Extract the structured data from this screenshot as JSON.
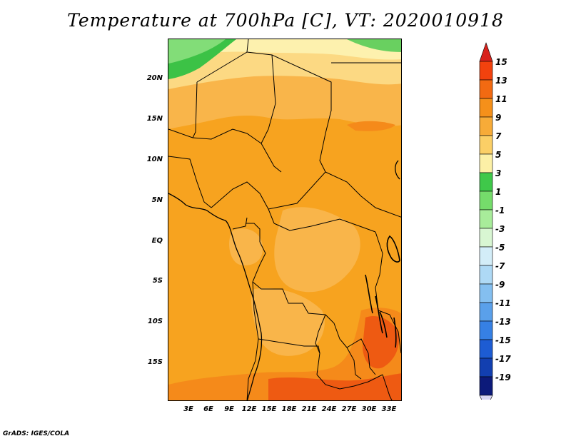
{
  "title": "Temperature at 700hPa [C], VT: 2020010918",
  "credit": "GrADS: IGES/COLA",
  "map": {
    "variable": "Temperature at 700hPa",
    "units": "C",
    "valid_time": "2020010918",
    "lat_labels": [
      "20N",
      "15N",
      "10N",
      "5N",
      "EQ",
      "5S",
      "10S",
      "15S"
    ],
    "lon_labels": [
      "3E",
      "6E",
      "9E",
      "12E",
      "15E",
      "18E",
      "21E",
      "24E",
      "27E",
      "30E",
      "33E"
    ],
    "colors": {
      "cold": "#00ccff",
      "warm": "#ff6600"
    }
  },
  "colorbar": {
    "labels": [
      "15",
      "13",
      "11",
      "9",
      "7",
      "5",
      "3",
      "1",
      "-1",
      "-3",
      "-5",
      "-7",
      "-9",
      "-11",
      "-13",
      "-15",
      "-17",
      "-19"
    ],
    "colors": [
      "#d8221c",
      "#f2420e",
      "#f26a12",
      "#f5901a",
      "#f7ab38",
      "#fbcf66",
      "#fcf0a6",
      "#3fc84a",
      "#75dc6b",
      "#a8ec9a",
      "#d8f6d2",
      "#d3edf8",
      "#aed9f5",
      "#84bff0",
      "#5aa0ea",
      "#3680e4",
      "#1d5cd3",
      "#123fb0",
      "#0c1a7a",
      "#d7d6f3"
    ]
  }
}
